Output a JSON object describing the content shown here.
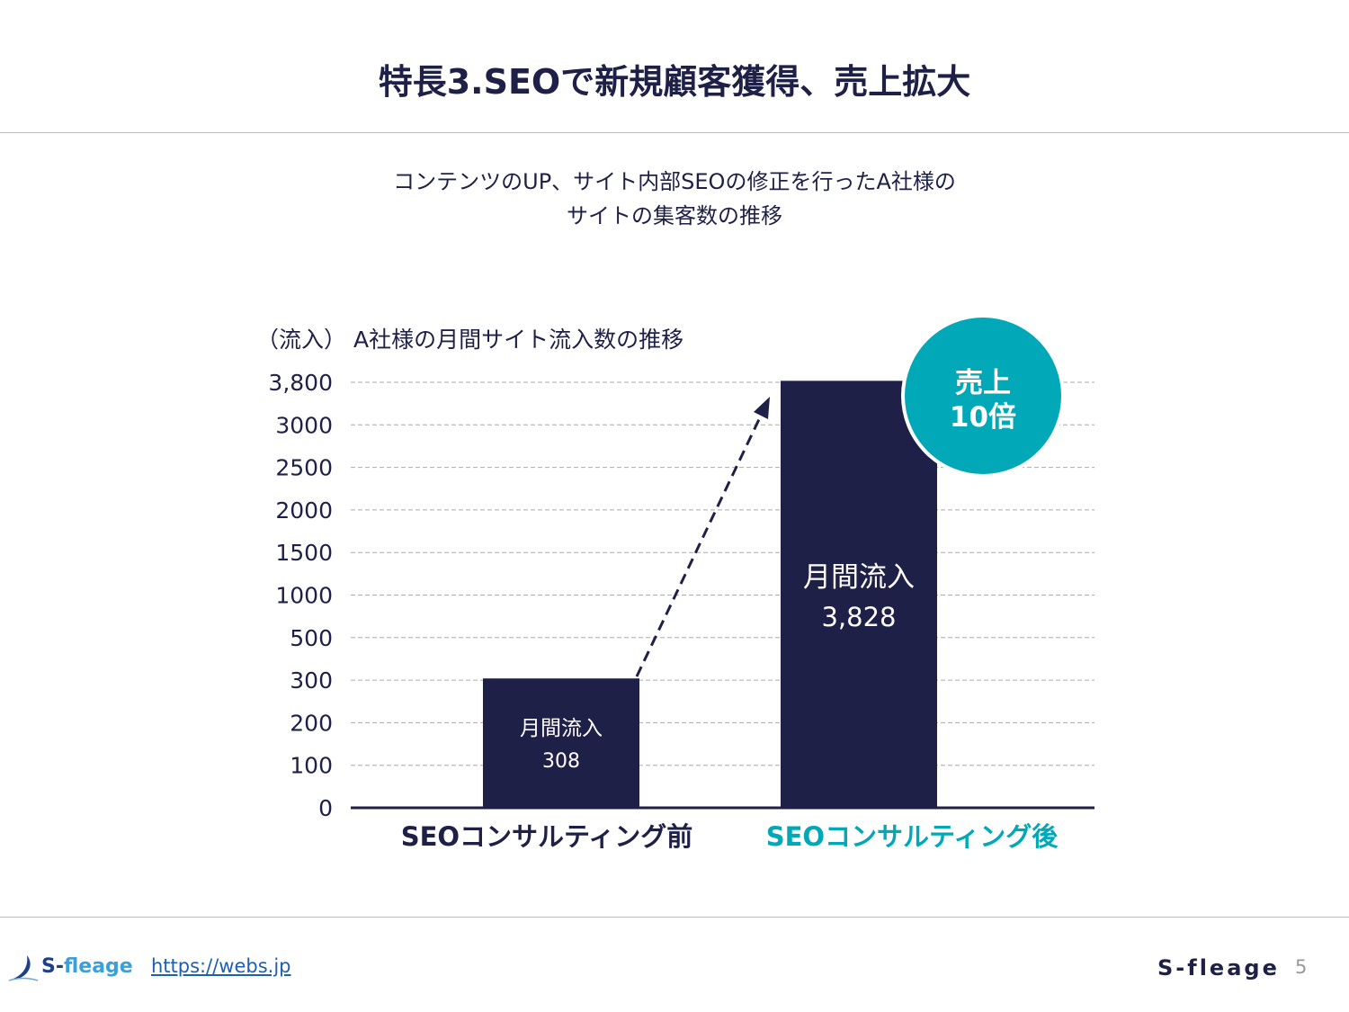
{
  "header": {
    "title": "特長3.SEOで新規顧客獲得、売上拡大"
  },
  "subtitle": [
    "コンテンツのUP、サイト内部SEOの修正を行ったA社様の",
    "サイトの集客数の推移"
  ],
  "chart_data": {
    "type": "bar",
    "title": "A社様の月間サイト流入数の推移",
    "ylabel": "（流入）",
    "categories": [
      "SEOコンサルティング前",
      "SEOコンサルティング後"
    ],
    "values": [
      308,
      3828
    ],
    "value_labels": [
      "308",
      "3,828"
    ],
    "bar_label": "月間流入",
    "y_ticks": [
      0,
      100,
      200,
      300,
      500,
      1000,
      1500,
      2000,
      2500,
      3000,
      3800
    ],
    "y_tick_labels": [
      "0",
      "100",
      "200",
      "300",
      "500",
      "1000",
      "1500",
      "2000",
      "2500",
      "3000",
      "3,800"
    ],
    "y_scale": "non-linear (evenly spaced ticks)",
    "grid": true,
    "bar_color": "#1e2047",
    "category_colors": [
      "#1e2047",
      "#00a8b8"
    ],
    "callout": {
      "line1": "売上",
      "line2": "10倍",
      "color": "#00a8b8"
    }
  },
  "footer": {
    "logo": "S-fleage",
    "url": "https://webs.jp",
    "brand": "S-fleage",
    "page": "5"
  }
}
